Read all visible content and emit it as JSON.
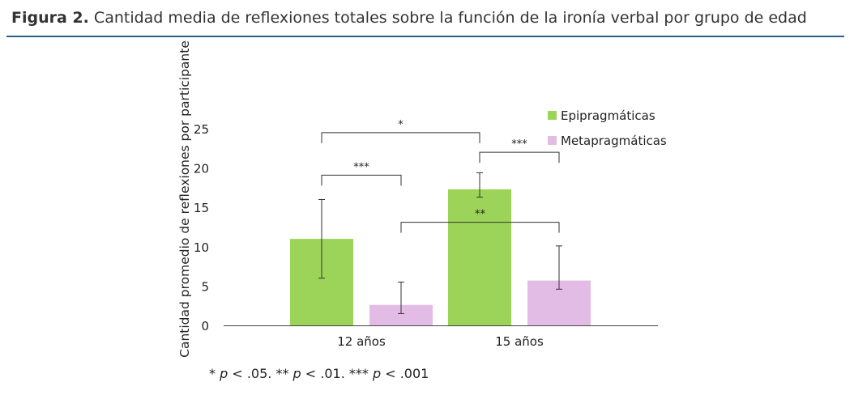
{
  "figure": {
    "label": "Figura 2.",
    "caption": "Cantidad media de reflexiones totales sobre la función de la ironía verbal por grupo de edad"
  },
  "footnote": {
    "parts": [
      {
        "text": "* ",
        "italic": false
      },
      {
        "text": "p",
        "italic": true
      },
      {
        "text": " < .05. ** ",
        "italic": false
      },
      {
        "text": "p",
        "italic": true
      },
      {
        "text": " < .01. *** ",
        "italic": false
      },
      {
        "text": "p",
        "italic": true
      },
      {
        "text": " < .001",
        "italic": false
      }
    ]
  },
  "colors": {
    "rule": "#2b5f8e",
    "epi": "#9cd45a",
    "meta": "#e3bce6"
  },
  "chart_data": {
    "type": "bar",
    "title": "",
    "xlabel": "",
    "ylabel": "Cantidad promedio de reflexiones por participante",
    "ylim": [
      0,
      25
    ],
    "yticks": [
      0,
      5,
      10,
      15,
      20,
      25
    ],
    "categories": [
      "12 años",
      "15 años"
    ],
    "series": [
      {
        "name": "Epipragmáticas",
        "values": [
          11.0,
          17.3
        ],
        "error_low": [
          6.0,
          16.3
        ],
        "error_high": [
          16.0,
          19.4
        ]
      },
      {
        "name": "Metapragmáticas",
        "values": [
          2.6,
          5.7
        ],
        "error_low": [
          1.5,
          4.6
        ],
        "error_high": [
          5.5,
          10.1
        ]
      }
    ],
    "legend_position": "top-right",
    "grid": false,
    "significance": [
      {
        "label": "*",
        "from": [
          0,
          0
        ],
        "to": [
          1,
          0
        ],
        "level": 24.5
      },
      {
        "label": "***",
        "from": [
          0,
          0
        ],
        "to": [
          0,
          1
        ],
        "level": 19.1
      },
      {
        "label": "***",
        "from": [
          1,
          0
        ],
        "to": [
          1,
          1
        ],
        "level": 22.0
      },
      {
        "label": "**",
        "from": [
          0,
          1
        ],
        "to": [
          1,
          1
        ],
        "level": 13.1
      }
    ]
  }
}
